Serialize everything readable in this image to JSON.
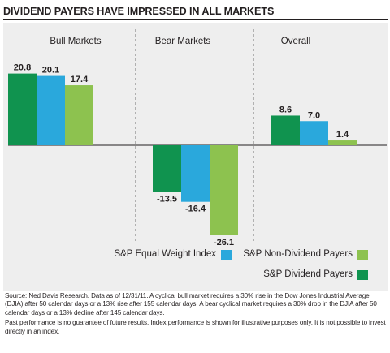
{
  "title": "DIVIDEND PAYERS HAVE IMPRESSED IN ALL MARKETS",
  "colors": {
    "dividend": "#10934f",
    "equal_weight": "#2aa8dc",
    "non_dividend": "#8dc24f",
    "panel": "#eeeeee",
    "text": "#231f20"
  },
  "chart_data": {
    "type": "bar",
    "categories": [
      "Bull Markets",
      "Bear Markets",
      "Overall"
    ],
    "series": [
      {
        "name": "S&P Dividend Payers",
        "values": [
          20.8,
          -13.5,
          8.6
        ]
      },
      {
        "name": "S&P Equal Weight Index",
        "values": [
          20.1,
          -16.4,
          7.0
        ]
      },
      {
        "name": "S&P Non-Dividend Payers",
        "values": [
          17.4,
          -26.1,
          1.4
        ]
      }
    ],
    "data_labels": [
      [
        "20.8",
        "-13.5",
        "8.6"
      ],
      [
        "20.1",
        "-16.4",
        "7.0"
      ],
      [
        "17.4",
        "-26.1",
        "1.4"
      ]
    ],
    "legend": [
      "S&P Equal Weight Index",
      "S&P Non-Dividend Payers",
      "S&P Dividend Payers"
    ],
    "legend_position": "bottom-right",
    "grid": false,
    "ylim": [
      -27,
      23
    ]
  },
  "footer": {
    "source": "Source: Ned Davis Research. Data as of 12/31/11. A cyclical bull market requires a 30% rise in the Dow Jones Industrial Average (DJIA) after 50 calendar days or a 13% rise after 155 calendar days. A bear cyclical market requires a 30% drop in the DJIA after 50 calendar days or a 13% decline after 145 calendar days.",
    "disclaimer": "Past performance is no guarantee of future results. Index performance is shown for illustrative purposes only.  It is not possible to invest directly in an index."
  }
}
